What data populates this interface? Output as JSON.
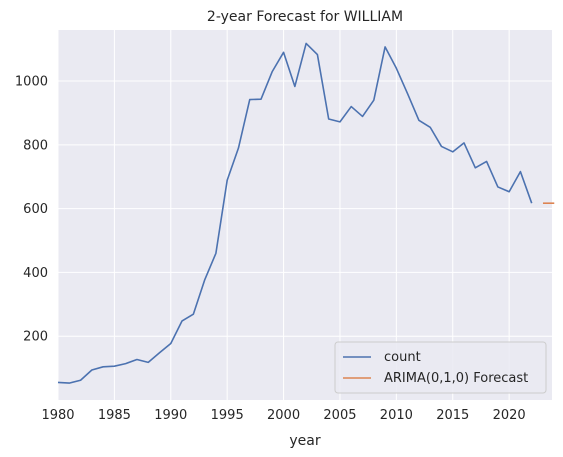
{
  "chart_data": {
    "type": "line",
    "title": "2-year Forecast for WILLIAM",
    "xlabel": "year",
    "ylabel": "",
    "xlim": [
      1980,
      2023.8
    ],
    "ylim": [
      0,
      1160
    ],
    "xticks": [
      1980,
      1985,
      1990,
      1995,
      2000,
      2005,
      2010,
      2015,
      2020
    ],
    "yticks": [
      200,
      400,
      600,
      800,
      1000
    ],
    "grid": true,
    "legend_position": "lower-right",
    "series": [
      {
        "name": "count",
        "color": "#4c72b0",
        "x": [
          1980,
          1981,
          1982,
          1983,
          1984,
          1985,
          1986,
          1987,
          1988,
          1989,
          1990,
          1991,
          1992,
          1993,
          1994,
          1995,
          1996,
          1997,
          1998,
          1999,
          2000,
          2001,
          2002,
          2003,
          2004,
          2005,
          2006,
          2007,
          2008,
          2009,
          2010,
          2011,
          2012,
          2013,
          2014,
          2015,
          2016,
          2017,
          2018,
          2019,
          2020,
          2021,
          2022
        ],
        "values": [
          55,
          53,
          62,
          94,
          104,
          106,
          114,
          127,
          118,
          148,
          177,
          248,
          269,
          376,
          460,
          689,
          790,
          942,
          943,
          1030,
          1090,
          983,
          1118,
          1083,
          881,
          872,
          920,
          889,
          940,
          1107,
          1040,
          960,
          877,
          855,
          795,
          778,
          806,
          728,
          748,
          668,
          653,
          716,
          617
        ]
      },
      {
        "name": "ARIMA(0,1,0) Forecast",
        "color": "#dd8452",
        "x": [
          2023,
          2024
        ],
        "values": [
          617,
          617
        ]
      }
    ]
  }
}
